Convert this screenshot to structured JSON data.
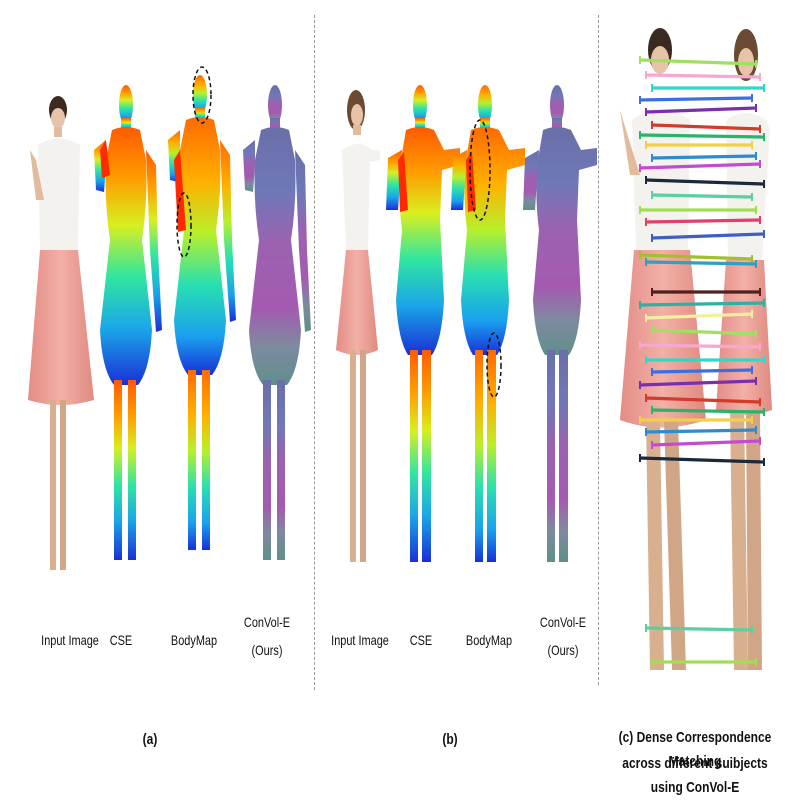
{
  "panel_a": {
    "labels": [
      "Input Image",
      "CSE",
      "BodyMap",
      "ConVol-E (Ours)"
    ],
    "caption": "(a)"
  },
  "panel_b": {
    "labels": [
      "Input Image",
      "CSE",
      "BodyMap",
      "ConVol-E (Ours)"
    ],
    "caption": "(b)"
  },
  "panel_c": {
    "caption_line1": "(c) Dense Correspondence Matching",
    "caption_line2": "across different suibjects using ConVol-E"
  },
  "colors": {
    "divider": "#9a9a9a",
    "skirt": "#e8a39a",
    "blouse": "#f4f2ef",
    "skin": "#d9b08f",
    "hair": "#3a2a22",
    "convol_purple": "#9b5fa8",
    "convol_teal": "#5f8f8a",
    "match_lines": [
      "#9fe060",
      "#f7a8d0",
      "#35d6c6",
      "#3b6fe0",
      "#7a2fb0",
      "#d33b2b",
      "#2bb36b",
      "#f0d04a",
      "#2e8bd0",
      "#c34bd0",
      "#1a2a3a",
      "#5ad0a0",
      "#a0e050",
      "#e0406a",
      "#4060c0",
      "#a0c030",
      "#30a0c0",
      "#502020",
      "#30b0a0",
      "#f0f0a0"
    ]
  }
}
